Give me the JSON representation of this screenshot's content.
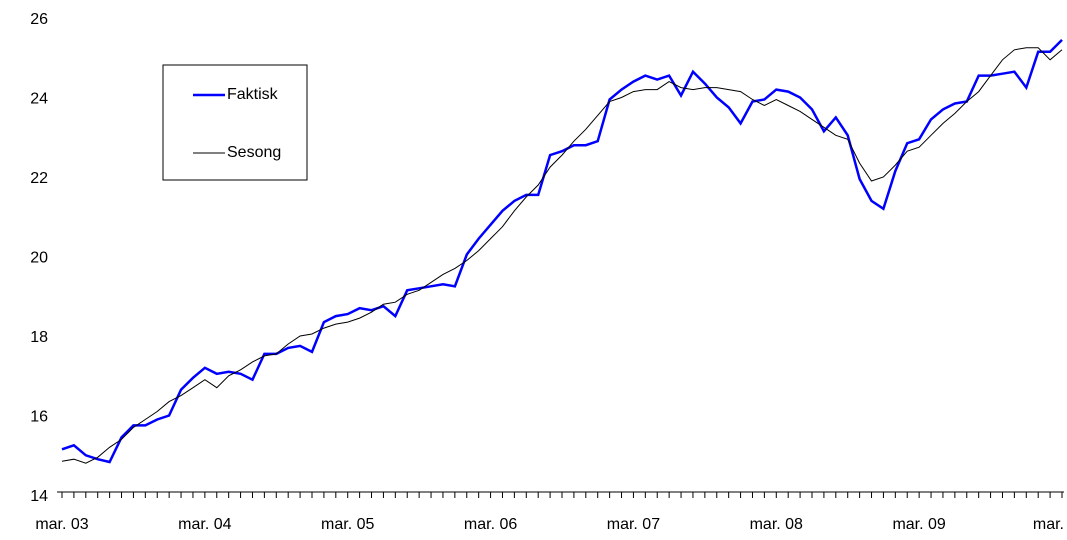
{
  "chart_data": {
    "type": "line",
    "categories": [
      "mar. 03",
      null,
      null,
      null,
      null,
      null,
      null,
      null,
      null,
      null,
      null,
      null,
      "mar. 04",
      null,
      null,
      null,
      null,
      null,
      null,
      null,
      null,
      null,
      null,
      null,
      "mar. 05",
      null,
      null,
      null,
      null,
      null,
      null,
      null,
      null,
      null,
      null,
      null,
      "mar. 06",
      null,
      null,
      null,
      null,
      null,
      null,
      null,
      null,
      null,
      null,
      null,
      "mar. 07",
      null,
      null,
      null,
      null,
      null,
      null,
      null,
      null,
      null,
      null,
      null,
      "mar. 08",
      null,
      null,
      null,
      null,
      null,
      null,
      null,
      null,
      null,
      null,
      null,
      "mar. 09",
      null,
      null,
      null,
      null,
      null,
      null,
      null,
      null,
      null,
      null,
      null,
      "mar."
    ],
    "series": [
      {
        "name": "Faktisk",
        "color": "#0000ff",
        "values": [
          15.2,
          15.3,
          15.05,
          14.95,
          14.88,
          15.5,
          15.8,
          15.8,
          15.95,
          16.05,
          16.7,
          17.0,
          17.25,
          17.1,
          17.15,
          17.1,
          16.95,
          17.6,
          17.6,
          17.75,
          17.8,
          17.65,
          18.4,
          18.55,
          18.6,
          18.75,
          18.7,
          18.8,
          18.55,
          19.2,
          19.25,
          19.3,
          19.35,
          19.3,
          20.1,
          20.5,
          20.85,
          21.2,
          21.45,
          21.6,
          21.6,
          22.6,
          22.7,
          22.85,
          22.85,
          22.95,
          24.0,
          24.25,
          24.45,
          24.6,
          24.5,
          24.6,
          24.1,
          24.7,
          24.4,
          24.05,
          23.8,
          23.4,
          23.95,
          24.0,
          24.25,
          24.2,
          24.05,
          23.75,
          23.2,
          23.55,
          23.1,
          22.0,
          21.45,
          21.25,
          22.2,
          22.9,
          23.0,
          23.5,
          23.75,
          23.9,
          23.95,
          24.6,
          24.6,
          24.65,
          24.7,
          24.3,
          25.2,
          25.2,
          25.5
        ]
      },
      {
        "name": "Sesong",
        "color": "#000000",
        "values": [
          14.9,
          14.95,
          14.85,
          15.0,
          15.25,
          15.45,
          15.75,
          15.95,
          16.15,
          16.4,
          16.55,
          16.75,
          16.95,
          16.75,
          17.05,
          17.2,
          17.4,
          17.55,
          17.6,
          17.85,
          18.05,
          18.1,
          18.25,
          18.35,
          18.4,
          18.5,
          18.65,
          18.85,
          18.9,
          19.1,
          19.2,
          19.4,
          19.6,
          19.75,
          19.95,
          20.2,
          20.5,
          20.8,
          21.2,
          21.55,
          21.85,
          22.3,
          22.6,
          22.95,
          23.25,
          23.6,
          23.95,
          24.05,
          24.2,
          24.25,
          24.25,
          24.45,
          24.3,
          24.25,
          24.3,
          24.3,
          24.25,
          24.2,
          24.0,
          23.85,
          24.0,
          23.85,
          23.7,
          23.5,
          23.3,
          23.1,
          23.0,
          22.4,
          21.95,
          22.05,
          22.35,
          22.7,
          22.8,
          23.1,
          23.4,
          23.65,
          23.95,
          24.2,
          24.6,
          25.0,
          25.25,
          25.3,
          25.3,
          25.0,
          25.25
        ]
      }
    ],
    "ylim": [
      14,
      26
    ],
    "yticks": [
      14,
      16,
      18,
      20,
      22,
      24,
      26
    ],
    "grid": false,
    "legend": "upper left"
  }
}
